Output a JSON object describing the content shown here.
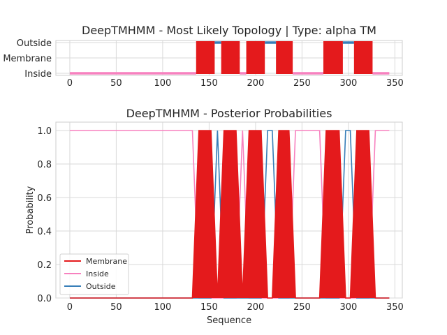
{
  "chart_data": [
    {
      "type": "line",
      "title": "DeepTMHMM - Most Likely Topology | Type: alpha TM",
      "xlabel": "",
      "ylabel": "",
      "xlim": [
        -15,
        358
      ],
      "x_ticks": [
        0,
        50,
        100,
        150,
        200,
        250,
        300,
        350
      ],
      "y_categories": [
        "Inside",
        "Membrane",
        "Outside"
      ],
      "grid": true,
      "segments": [
        {
          "state": "Inside",
          "start": 0,
          "end": 136
        },
        {
          "state": "Membrane",
          "start": 136,
          "end": 156
        },
        {
          "state": "Outside",
          "start": 156,
          "end": 163
        },
        {
          "state": "Membrane",
          "start": 163,
          "end": 183
        },
        {
          "state": "Inside",
          "start": 183,
          "end": 190
        },
        {
          "state": "Membrane",
          "start": 190,
          "end": 210
        },
        {
          "state": "Outside",
          "start": 210,
          "end": 222
        },
        {
          "state": "Membrane",
          "start": 222,
          "end": 240
        },
        {
          "state": "Inside",
          "start": 240,
          "end": 273
        },
        {
          "state": "Membrane",
          "start": 273,
          "end": 294
        },
        {
          "state": "Outside",
          "start": 294,
          "end": 306
        },
        {
          "state": "Membrane",
          "start": 306,
          "end": 326
        },
        {
          "state": "Inside",
          "start": 326,
          "end": 344
        }
      ]
    },
    {
      "type": "line",
      "title": "DeepTMHMM - Posterior Probabilities",
      "xlabel": "Sequence",
      "ylabel": "Probability",
      "xlim": [
        -15,
        358
      ],
      "ylim": [
        0,
        1.05
      ],
      "x_ticks": [
        0,
        50,
        100,
        150,
        200,
        250,
        300,
        350
      ],
      "y_ticks": [
        "0.0",
        "0.2",
        "0.4",
        "0.6",
        "0.8",
        "1.0"
      ],
      "grid": true,
      "legend": "lower-left",
      "sequence_length": 344,
      "series": [
        {
          "name": "Membrane",
          "color": "#e41a1c"
        },
        {
          "name": "Inside",
          "color": "#f781bf"
        },
        {
          "name": "Outside",
          "color": "#377eb8"
        }
      ]
    }
  ],
  "colors": {
    "membrane": "#e41a1c",
    "inside": "#f781bf",
    "outside": "#377eb8"
  }
}
